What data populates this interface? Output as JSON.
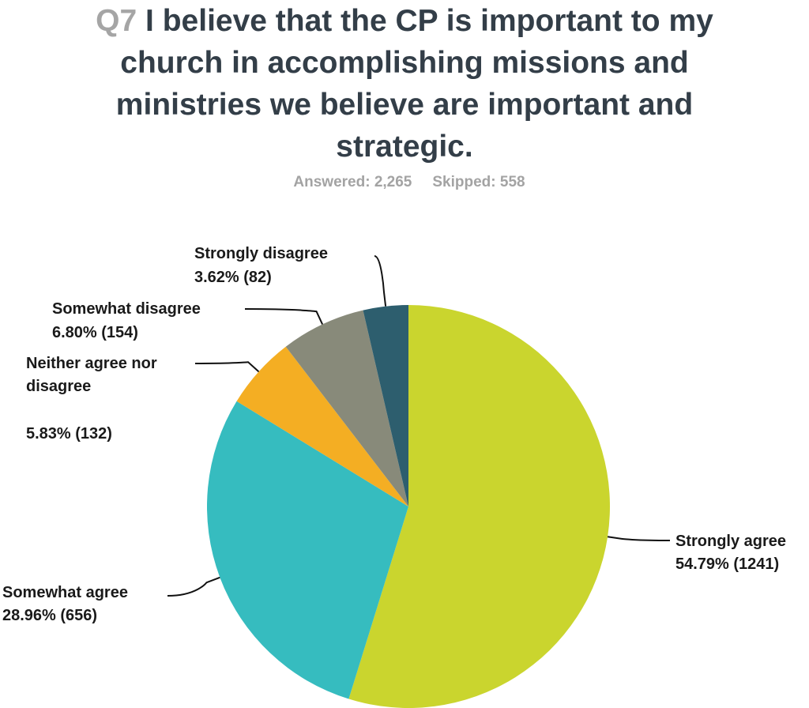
{
  "header": {
    "question_number": "Q7",
    "question_text": "I believe that the CP is important to my church in accomplishing missions and ministries we believe are important and strategic.",
    "answered": "Answered: 2,265",
    "skipped": "Skipped: 558"
  },
  "chart_data": {
    "type": "pie",
    "start_angle_deg": 0,
    "direction": "clockwise",
    "slices": [
      {
        "label": "Strongly agree",
        "percent": 54.79,
        "count": 1241,
        "value_text": "54.79% (1241)",
        "color": "#cad52e"
      },
      {
        "label": "Somewhat agree",
        "percent": 28.96,
        "count": 656,
        "value_text": "28.96% (656)",
        "color": "#36bcbf"
      },
      {
        "label": "Neither agree nor disagree",
        "label_lines": [
          "Neither agree nor",
          "disagree"
        ],
        "percent": 5.83,
        "count": 132,
        "value_text": "5.83% (132)",
        "color": "#f4ae23"
      },
      {
        "label": "Somewhat disagree",
        "percent": 6.8,
        "count": 154,
        "value_text": "6.80% (154)",
        "color": "#888a7a"
      },
      {
        "label": "Strongly disagree",
        "percent": 3.62,
        "count": 82,
        "value_text": "3.62% (82)",
        "color": "#2d5e6e"
      }
    ]
  }
}
